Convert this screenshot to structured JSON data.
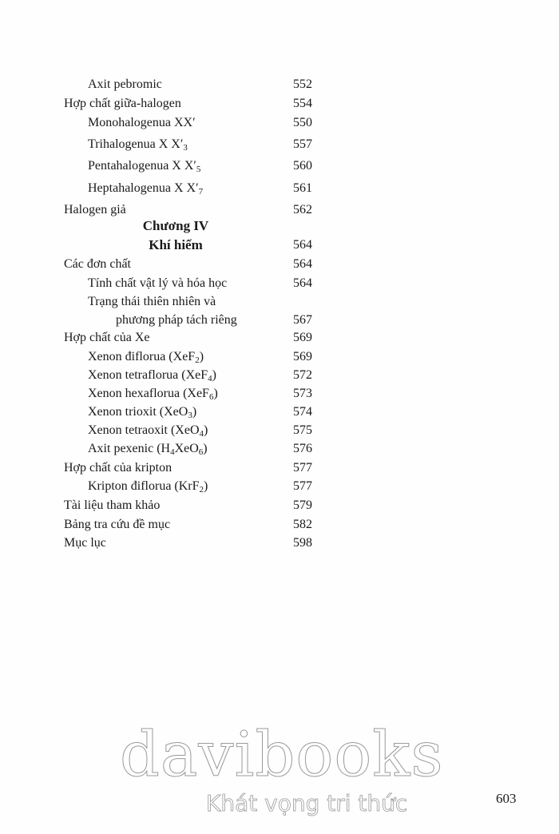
{
  "toc": [
    {
      "level": 1,
      "text": "Axit pebromic",
      "page": "552"
    },
    {
      "level": 0,
      "text": "Hợp chất giữa-halogen",
      "page": "554"
    },
    {
      "level": 1,
      "text": "Monohalogenua  XX′",
      "page": "550"
    },
    {
      "level": 1,
      "text": "Trihalogenua X X′",
      "sub": "3",
      "page": "557"
    },
    {
      "level": 1,
      "text": "Pentahalogenua X X′",
      "sub": "5",
      "page": "560"
    },
    {
      "level": 1,
      "text": "Heptahalogenua X X′",
      "sub": "7",
      "page": "561"
    },
    {
      "level": 0,
      "text": "Halogen giả",
      "page": "562"
    },
    {
      "level": "chap",
      "text": "Chương IV",
      "page": ""
    },
    {
      "level": "chap",
      "text": "Khí hiếm",
      "page": "564"
    },
    {
      "level": 0,
      "text": "Các đơn chất",
      "page": "564"
    },
    {
      "level": 1,
      "text": "Tính chất vật lý và hóa học",
      "page": "564"
    },
    {
      "level": 1,
      "text": "Trạng thái thiên nhiên và",
      "page": ""
    },
    {
      "level": 2,
      "text": "phương pháp tách riêng",
      "page": "567"
    },
    {
      "level": 0,
      "text": "Hợp chất của Xe",
      "page": "569"
    },
    {
      "level": 1,
      "text": "Xenon điflorua (XeF",
      "sub": "2",
      "after": ")",
      "page": "569"
    },
    {
      "level": 1,
      "text": "Xenon tetraflorua (XeF",
      "sub": "4",
      "after": ")",
      "page": "572"
    },
    {
      "level": 1,
      "text": "Xenon hexaflorua (XeF",
      "sub": "6",
      "after": ")",
      "page": "573"
    },
    {
      "level": 1,
      "text": "Xenon trioxit (XeO",
      "sub": "3",
      "after": ")",
      "page": "574"
    },
    {
      "level": 1,
      "text": "Xenon tetraoxit (XeO",
      "sub": "4",
      "after": ")",
      "page": "575"
    },
    {
      "level": 1,
      "text": "Axit pexenic (H",
      "sub": "4",
      "after": "XeO",
      "sub2": "6",
      "after2": ")",
      "page": "576"
    },
    {
      "level": 0,
      "text": "Hợp chất của kripton",
      "page": "577"
    },
    {
      "level": 1,
      "text": "Kripton điflorua (KrF",
      "sub": "2",
      "after": ")",
      "page": "577"
    },
    {
      "level": 0,
      "text": "Tài liệu tham khảo",
      "page": "579"
    },
    {
      "level": 0,
      "text": "Bảng tra cứu đề mục",
      "page": "582"
    },
    {
      "level": 0,
      "text": "Mục lục",
      "page": "598"
    }
  ],
  "folio": "603",
  "watermark": {
    "brand": "davibooks",
    "slogan": "Khát vọng tri thức"
  }
}
